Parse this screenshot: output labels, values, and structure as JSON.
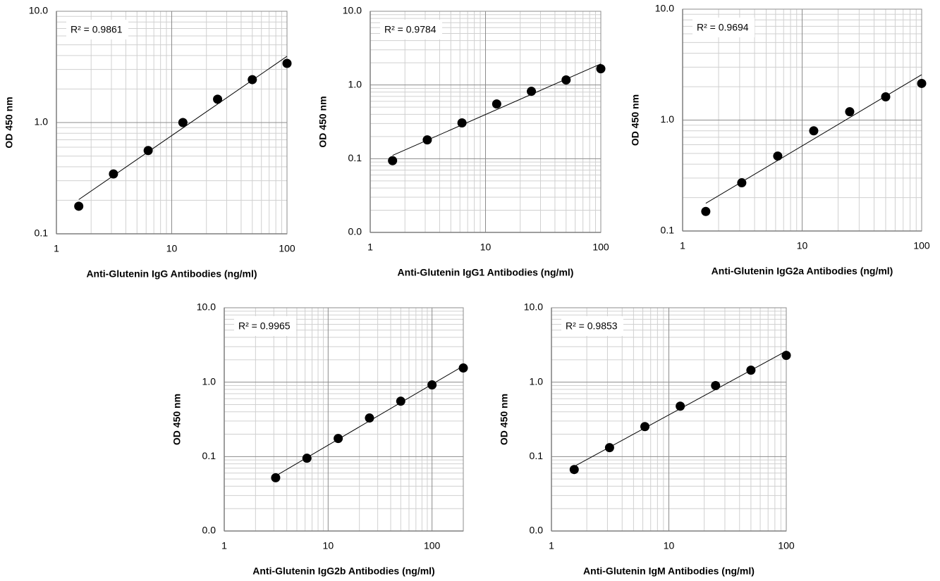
{
  "chart_data": [
    {
      "type": "scatter",
      "x_label": "Anti-Glutenin IgG Antibodies (ng/ml)",
      "y_label": "OD 450 nm",
      "annotation": "R² = 0.9861",
      "x": [
        1.5625,
        3.125,
        6.25,
        12.5,
        25,
        50,
        100
      ],
      "values": [
        0.177,
        0.345,
        0.56,
        1.0,
        1.62,
        2.43,
        3.4
      ],
      "color": "#000000",
      "log_x": true,
      "log_y": true,
      "grid": true,
      "trendline": true,
      "xlim": [
        1,
        100
      ],
      "ylim": [
        0.1,
        10
      ],
      "xticks": [
        1,
        10,
        100
      ],
      "yticks": [
        0.1,
        {
          "value": 1,
          "label": "1.0"
        },
        {
          "value": 10,
          "label": "10.0"
        }
      ]
    },
    {
      "type": "scatter",
      "x_label": "Anti-Glutenin IgG1 Antibodies (ng/ml)",
      "y_label": "OD 450 nm",
      "annotation": "R² = 0.9784",
      "x": [
        1.5625,
        3.125,
        6.25,
        12.5,
        25,
        50,
        100
      ],
      "values": [
        0.094,
        0.18,
        0.306,
        0.553,
        0.82,
        1.17,
        1.66
      ],
      "color": "#000000",
      "log_x": true,
      "log_y": true,
      "grid": true,
      "trendline": true,
      "xlim": [
        1,
        100
      ],
      "ylim": [
        0.01,
        10
      ],
      "xticks": [
        1,
        10,
        100
      ],
      "yticks": [
        {
          "value": 0.01,
          "label": "0.0"
        },
        0.1,
        {
          "value": 1,
          "label": "1.0"
        },
        {
          "value": 10,
          "label": "10.0"
        }
      ]
    },
    {
      "type": "scatter",
      "x_label": "Anti-Glutenin IgG2a Antibodies (ng/ml)",
      "y_label": "OD 450 nm",
      "annotation": "R² = 0.9694",
      "x": [
        1.5625,
        3.125,
        6.25,
        12.5,
        25,
        50,
        100
      ],
      "values": [
        0.15,
        0.272,
        0.474,
        0.8,
        1.19,
        1.62,
        2.14
      ],
      "color": "#000000",
      "log_x": true,
      "log_y": true,
      "grid": true,
      "trendline": true,
      "xlim": [
        1,
        100
      ],
      "ylim": [
        0.1,
        10
      ],
      "xticks": [
        1,
        10,
        100
      ],
      "yticks": [
        0.1,
        {
          "value": 1,
          "label": "1.0"
        },
        {
          "value": 10,
          "label": "10.0"
        }
      ]
    },
    {
      "type": "scatter",
      "x_label": "Anti-Glutenin IgG2b Antibodies (ng/ml)",
      "y_label": "OD 450 nm",
      "annotation": "R² = 0.9965",
      "x": [
        3.125,
        6.25,
        12.5,
        25,
        50,
        100,
        200
      ],
      "values": [
        0.052,
        0.095,
        0.175,
        0.33,
        0.555,
        0.92,
        1.55
      ],
      "color": "#000000",
      "log_x": true,
      "log_y": true,
      "grid": true,
      "trendline": true,
      "xlim": [
        1,
        200
      ],
      "ylim": [
        0.01,
        10
      ],
      "xticks": [
        1,
        10,
        100
      ],
      "yticks": [
        {
          "value": 0.01,
          "label": "0.0"
        },
        0.1,
        {
          "value": 1,
          "label": "1.0"
        },
        {
          "value": 10,
          "label": "10.0"
        }
      ]
    },
    {
      "type": "scatter",
      "x_label": "Anti-Glutenin IgM Antibodies (ng/ml)",
      "y_label": "OD 450 nm",
      "annotation": "R² = 0.9853",
      "x": [
        1.5625,
        3.125,
        6.25,
        12.5,
        25,
        50,
        100
      ],
      "values": [
        0.067,
        0.132,
        0.253,
        0.476,
        0.9,
        1.45,
        2.29
      ],
      "color": "#000000",
      "log_x": true,
      "log_y": true,
      "grid": true,
      "trendline": true,
      "xlim": [
        1,
        100
      ],
      "ylim": [
        0.01,
        10
      ],
      "xticks": [
        1,
        10,
        100
      ],
      "yticks": [
        {
          "value": 0.01,
          "label": "0.0"
        },
        0.1,
        {
          "value": 1,
          "label": "1.0"
        },
        {
          "value": 10,
          "label": "10.0"
        }
      ]
    }
  ]
}
